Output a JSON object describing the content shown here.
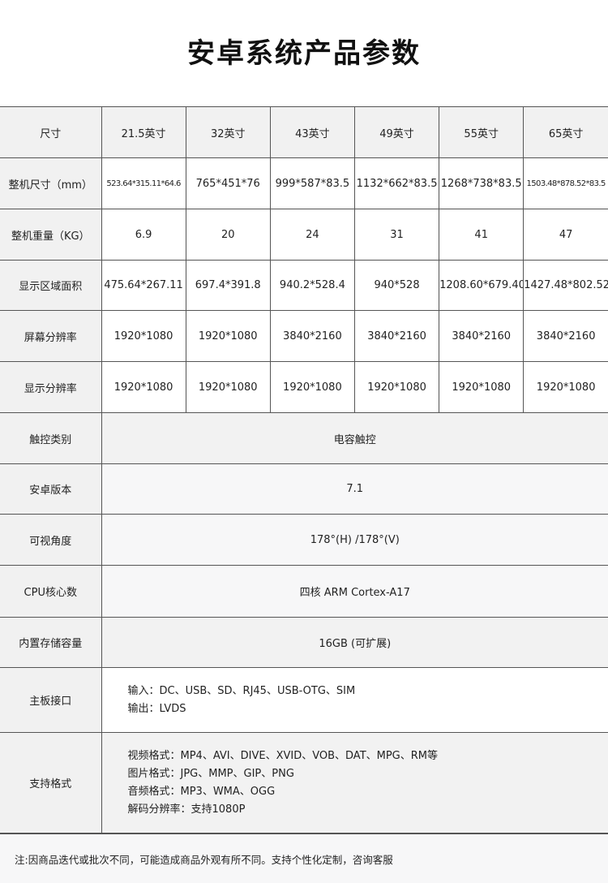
{
  "title": "安卓系统产品参数",
  "header": {
    "label": "尺寸",
    "sizes": [
      "21.5英寸",
      "32英寸",
      "43英寸",
      "49英寸",
      "55英寸",
      "65英寸"
    ]
  },
  "rows": [
    {
      "label": "整机尺寸（mm）",
      "values": [
        "523.64*315.11*64.6",
        "765*451*76",
        "999*587*83.5",
        "1132*662*83.5",
        "1268*738*83.5",
        "1503.48*878.52*83.5"
      ]
    },
    {
      "label": "整机重量（KG）",
      "values": [
        "6.9",
        "20",
        "24",
        "31",
        "41",
        "47"
      ]
    },
    {
      "label": "显示区域面积",
      "values": [
        "475.64*267.11",
        "697.4*391.8",
        "940.2*528.4",
        "940*528",
        "1208.60*679.40",
        "1427.48*802.52"
      ]
    },
    {
      "label": "屏幕分辨率",
      "values": [
        "1920*1080",
        "1920*1080",
        "3840*2160",
        "3840*2160",
        "3840*2160",
        "3840*2160"
      ]
    },
    {
      "label": "显示分辨率",
      "values": [
        "1920*1080",
        "1920*1080",
        "1920*1080",
        "1920*1080",
        "1920*1080",
        "1920*1080"
      ]
    }
  ],
  "merged": [
    {
      "label": "触控类别",
      "value": "电容触控"
    },
    {
      "label": "安卓版本",
      "value": "7.1"
    },
    {
      "label": "可视角度",
      "value": "178°(H) /178°(V)"
    },
    {
      "label": "CPU核心数",
      "value": "四核 ARM Cortex-A17"
    },
    {
      "label": "内置存储容量",
      "value": "16GB (可扩展)"
    }
  ],
  "interfaces": {
    "label": "主板接口",
    "lines": [
      "输入：DC、USB、SD、RJ45、USB-OTG、SIM",
      "输出：LVDS"
    ]
  },
  "formats": {
    "label": "支持格式",
    "lines": [
      "视频格式：MP4、AVI、DIVE、XVID、VOB、DAT、MPG、RM等",
      "图片格式：JPG、MMP、GIP、PNG",
      "音频格式：MP3、WMA、OGG",
      "解码分辨率：支持1080P"
    ]
  },
  "note": "注:因商品迭代或批次不同，可能造成商品外观有所不同。支持个性化定制，咨询客服"
}
